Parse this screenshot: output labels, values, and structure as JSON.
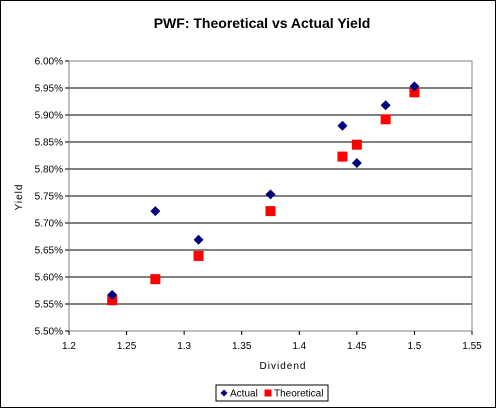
{
  "chart_data": {
    "type": "scatter",
    "title": "PWF: Theoretical vs Actual Yield",
    "xlabel": "Dividend",
    "ylabel": "Yield",
    "xlim": [
      1.2,
      1.55
    ],
    "ylim": [
      0.055,
      0.06
    ],
    "x_ticks": [
      "1.2",
      "1.25",
      "1.3",
      "1.35",
      "1.4",
      "1.45",
      "1.5",
      "1.55"
    ],
    "y_ticks": [
      "5.50%",
      "5.55%",
      "5.60%",
      "5.65%",
      "5.70%",
      "5.75%",
      "5.80%",
      "5.85%",
      "5.90%",
      "5.95%",
      "6.00%"
    ],
    "grid": "horizontal",
    "legend": "bottom",
    "series": [
      {
        "name": "Actual",
        "marker": "diamond",
        "color": "#000080",
        "points": [
          [
            1.2375,
            0.05567
          ],
          [
            1.275,
            0.05722
          ],
          [
            1.3125,
            0.05669
          ],
          [
            1.375,
            0.05753
          ],
          [
            1.4375,
            0.0588
          ],
          [
            1.45,
            0.05811
          ],
          [
            1.475,
            0.05918
          ],
          [
            1.5,
            0.05953
          ]
        ]
      },
      {
        "name": "Theoretical",
        "marker": "square",
        "color": "#ff0000",
        "points": [
          [
            1.2375,
            0.05557
          ],
          [
            1.275,
            0.05596
          ],
          [
            1.3125,
            0.05639
          ],
          [
            1.375,
            0.05722
          ],
          [
            1.4375,
            0.05823
          ],
          [
            1.45,
            0.05845
          ],
          [
            1.475,
            0.05892
          ],
          [
            1.5,
            0.05942
          ]
        ]
      }
    ]
  }
}
